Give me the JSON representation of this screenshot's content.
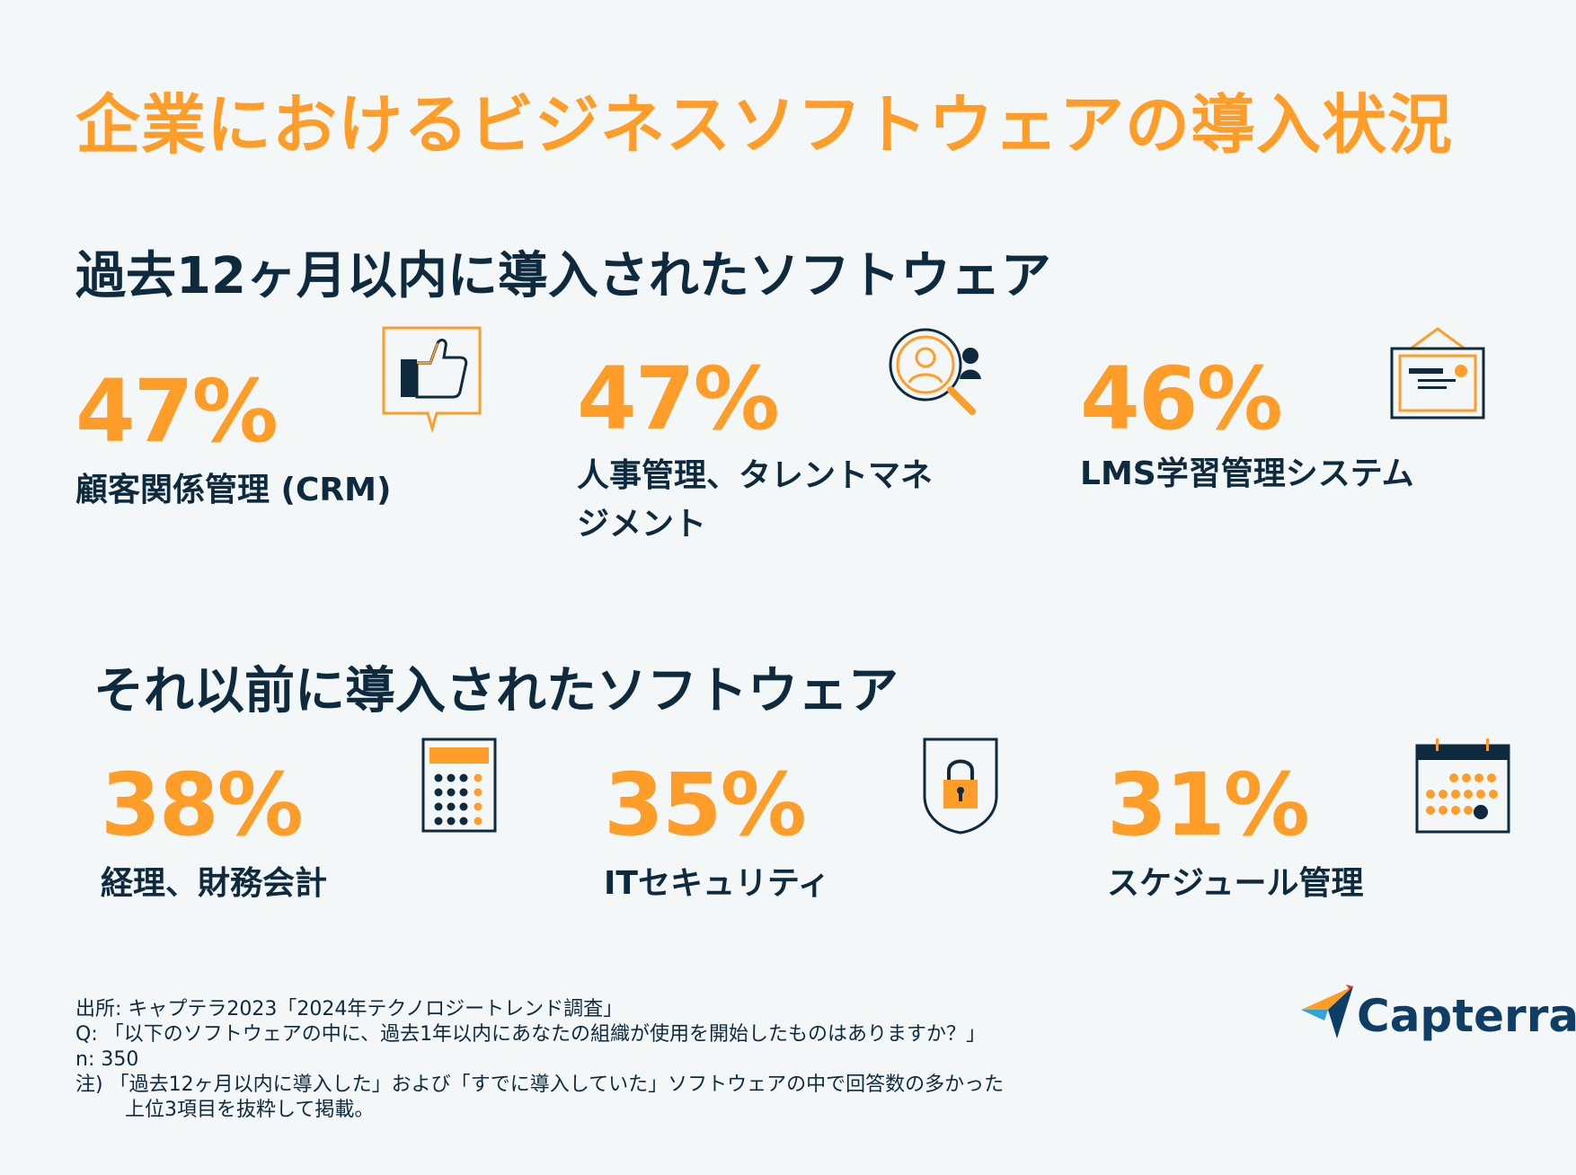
{
  "title": "企業におけるビジネスソフトウェアの導入状況",
  "recent": {
    "heading": "過去12ヶ月以内に導入されたソフトウェア",
    "items": [
      {
        "percent": "47%",
        "label": "顧客関係管理 (CRM)",
        "icon": "thumbs-up-icon"
      },
      {
        "percent": "47%",
        "label_line1": "人事管理、タレントマネ",
        "label_line2": "ジメント",
        "icon": "magnifier-person-icon"
      },
      {
        "percent": "46%",
        "label": "LMS学習管理システム",
        "icon": "presentation-board-icon"
      }
    ]
  },
  "earlier": {
    "heading": "それ以前に導入されたソフトウェア",
    "items": [
      {
        "percent": "38%",
        "label": "経理、財務会計",
        "icon": "calculator-icon"
      },
      {
        "percent": "35%",
        "label": "ITセキュリティ",
        "icon": "lock-shield-icon"
      },
      {
        "percent": "31%",
        "label": "スケジュール管理",
        "icon": "calendar-icon"
      }
    ]
  },
  "footnote": {
    "source": "出所: キャプテラ2023「2024年テクノロジートレンド調査」",
    "question": "Q: 「以下のソフトウェアの中に、過去1年以内にあなたの組織が使用を開始したものはありますか？」",
    "n": "n: 350",
    "note_line1": "注) 「過去12ヶ月以内に導入した」および「すでに導入していた」ソフトウェアの中で回答数の多かった",
    "note_line2": "上位3項目を抜粋して掲載。"
  },
  "brand": {
    "name": "Capterra",
    "accent": "#ff9d28",
    "dark": "#0e2a3e"
  }
}
